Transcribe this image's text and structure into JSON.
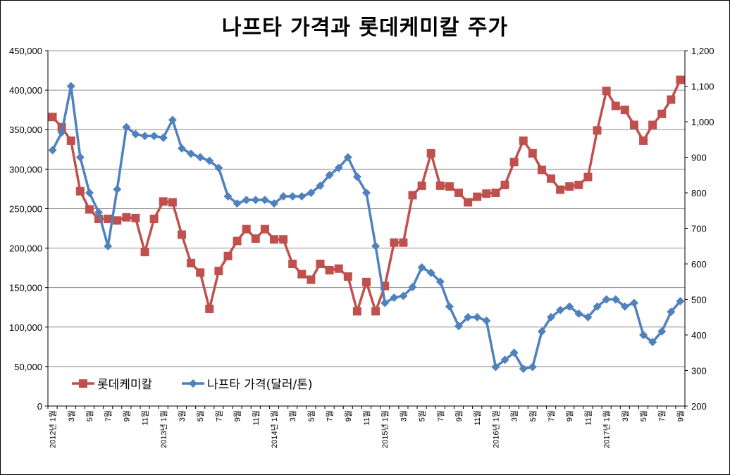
{
  "chart_data": {
    "type": "line",
    "title": "나프타 가격과 롯데케미칼 주가",
    "grid": true,
    "legend_position": "bottom-left",
    "colors": {
      "lotte": "#c0504d",
      "naphtha": "#4f81bd"
    },
    "y_left": {
      "lim": [
        0,
        450000
      ],
      "ticks": [
        "0",
        "50,000",
        "100,000",
        "150,000",
        "200,000",
        "250,000",
        "300,000",
        "350,000",
        "400,000",
        "450,000"
      ]
    },
    "y_right": {
      "lim": [
        200,
        1200
      ],
      "ticks": [
        "200",
        "300",
        "400",
        "500",
        "600",
        "700",
        "800",
        "900",
        "1,000",
        "1,100",
        "1,200"
      ]
    },
    "x_labels": [
      "2012년 1월",
      "",
      "3월",
      "",
      "5월",
      "",
      "7월",
      "",
      "9월",
      "",
      "11월",
      "",
      "2013년 1월",
      "",
      "3월",
      "",
      "5월",
      "",
      "7월",
      "",
      "9월",
      "",
      "11월",
      "",
      "2014년 1월",
      "",
      "3월",
      "",
      "5월",
      "",
      "7월",
      "",
      "9월",
      "",
      "11월",
      "",
      "2015년 1월",
      "",
      "3월",
      "",
      "5월",
      "",
      "7월",
      "",
      "9월",
      "",
      "11월",
      "",
      "2016년 1월",
      "",
      "3월",
      "",
      "5월",
      "",
      "7월",
      "",
      "9월",
      "",
      "11월",
      "",
      "2017년 1월",
      "",
      "3월",
      "",
      "5월",
      "",
      "7월",
      "",
      "9월"
    ],
    "series": [
      {
        "name": "롯데케미칼",
        "axis": "left",
        "marker": "square",
        "values": [
          366000,
          353000,
          336000,
          272000,
          249000,
          237000,
          237000,
          235000,
          239000,
          238000,
          195000,
          237000,
          259000,
          258000,
          217000,
          181000,
          169000,
          123000,
          171000,
          190000,
          209000,
          224000,
          212000,
          224000,
          211000,
          211000,
          180000,
          167000,
          160000,
          180000,
          172000,
          174000,
          164000,
          120000,
          157000,
          120000,
          152000,
          207000,
          207000,
          267000,
          279000,
          320000,
          279000,
          278000,
          270000,
          258000,
          265000,
          269000,
          270000,
          280000,
          309000,
          336000,
          320000,
          299000,
          288000,
          274000,
          278000,
          280000,
          290000,
          349000,
          399000,
          380000,
          375000,
          356000,
          336000,
          356000,
          370000,
          388000,
          413000
        ]
      },
      {
        "name": "나프타 가격(달러/톤)",
        "axis": "right",
        "marker": "diamond",
        "values": [
          920,
          970,
          1100,
          900,
          800,
          745,
          650,
          810,
          985,
          965,
          960,
          960,
          955,
          1005,
          925,
          910,
          900,
          890,
          870,
          790,
          770,
          780,
          780,
          780,
          770,
          790,
          790,
          790,
          800,
          820,
          850,
          870,
          900,
          845,
          800,
          650,
          490,
          505,
          510,
          535,
          590,
          575,
          550,
          480,
          425,
          450,
          450,
          440,
          310,
          330,
          350,
          305,
          310,
          410,
          450,
          470,
          480,
          460,
          450,
          480,
          500,
          500,
          480,
          490,
          400,
          380,
          410,
          465,
          495
        ]
      }
    ]
  }
}
